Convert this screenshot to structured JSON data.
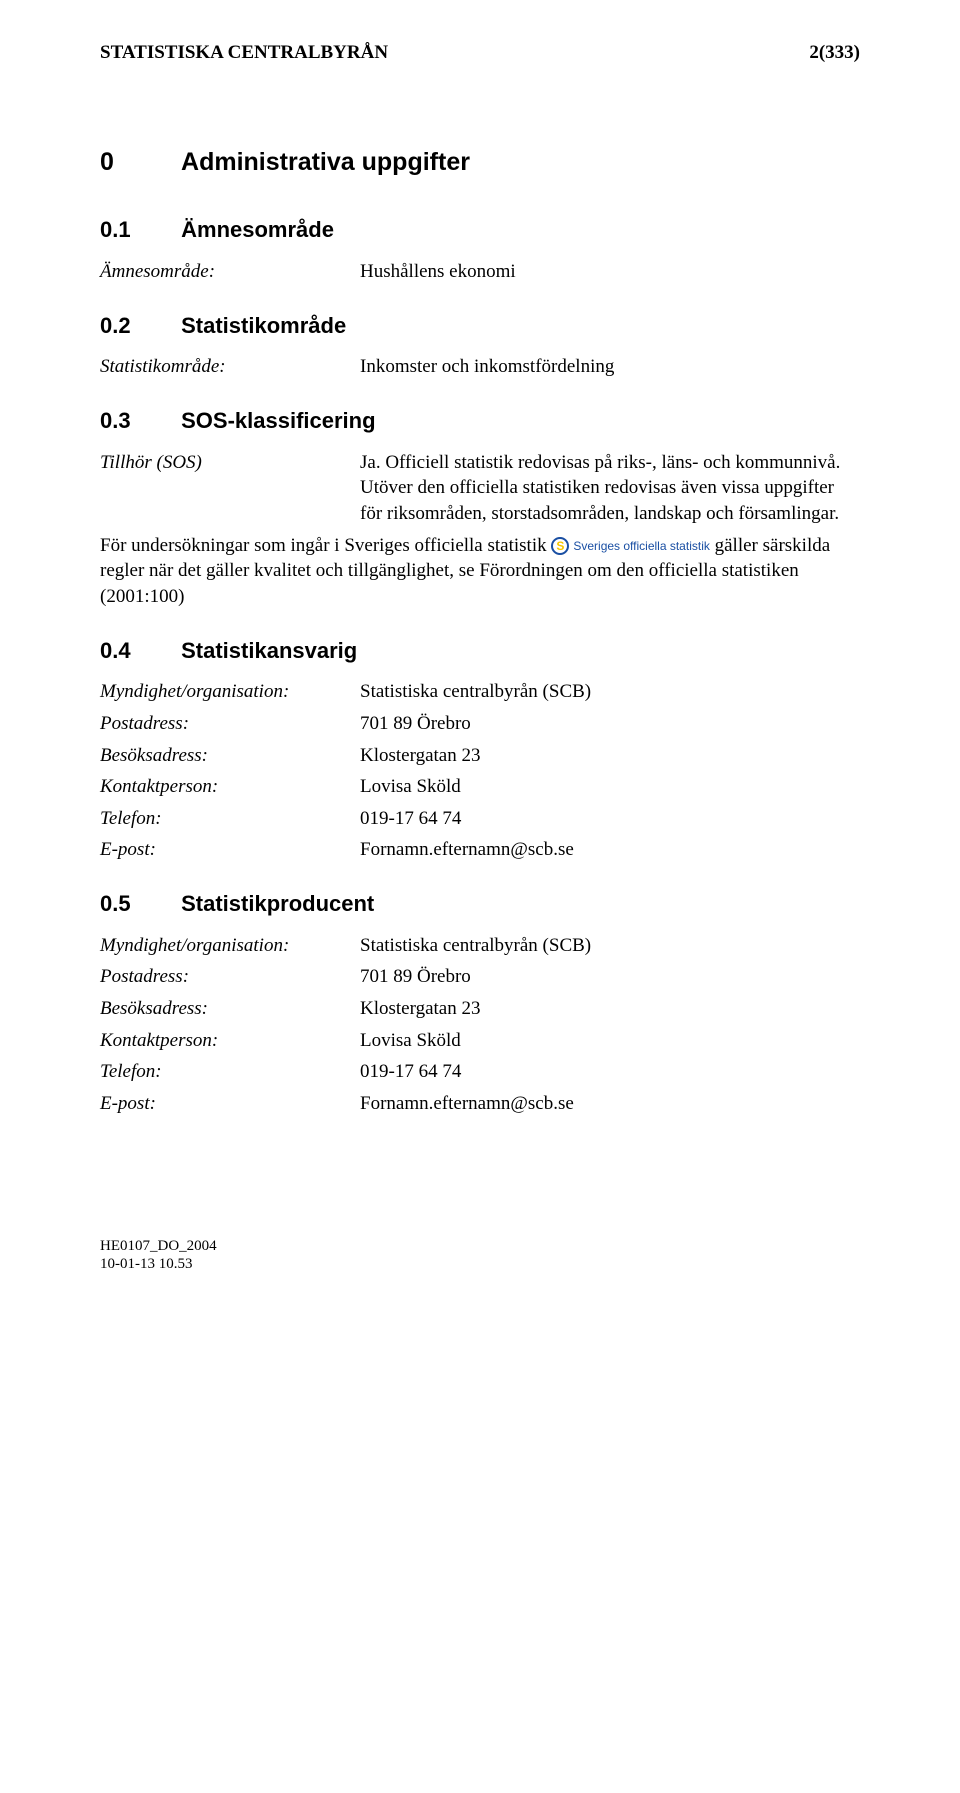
{
  "header": {
    "org": "STATISTISKA CENTRALBYRÅN",
    "page": "2(333)"
  },
  "s0": {
    "num": "0",
    "title": "Administrativa uppgifter"
  },
  "s01": {
    "num": "0.1",
    "title": "Ämnesområde",
    "label": "Ämnesområde:",
    "value": "Hushållens ekonomi"
  },
  "s02": {
    "num": "0.2",
    "title": "Statistikområde",
    "label": "Statistikområde:",
    "value": "Inkomster och inkomstfördelning"
  },
  "s03": {
    "num": "0.3",
    "title": "SOS-klassificering",
    "sos_label": "Tillhör (SOS)",
    "sos_value": "Ja. Officiell statistik redovisas på riks-, läns- och kommunnivå. Utöver den officiella statistiken redovisas även vissa uppgifter för riksområden, storstadsområden, landskap och församlingar.",
    "para_before": "För undersökningar som ingår i Sveriges officiella statistik",
    "para_after": "gäller särskilda regler när det gäller kvalitet och tillgänglighet, se Förordningen om den officiella statistiken (2001:100)",
    "logo": {
      "text": "Sveriges officiella statistik",
      "circle_border": "#1a4fa3",
      "circle_bg": "#ffffff",
      "circle_size": 18,
      "border_width": 2,
      "s_color": "#f7c600",
      "s_fontsize": 12,
      "s_glyph": "S"
    }
  },
  "s04": {
    "num": "0.4",
    "title": "Statistikansvarig",
    "rows": [
      {
        "label": "Myndighet/organisation:",
        "value": "Statistiska centralbyrån (SCB)"
      },
      {
        "label": "Postadress:",
        "value": "701 89 Örebro"
      },
      {
        "label": "Besöksadress:",
        "value": "Klostergatan 23"
      },
      {
        "label": "Kontaktperson:",
        "value": "Lovisa Sköld"
      },
      {
        "label": "Telefon:",
        "value": "019-17 64 74"
      },
      {
        "label": "E-post:",
        "value": "Fornamn.efternamn@scb.se"
      }
    ]
  },
  "s05": {
    "num": "0.5",
    "title": "Statistikproducent",
    "rows": [
      {
        "label": "Myndighet/organisation:",
        "value": "Statistiska centralbyrån (SCB)"
      },
      {
        "label": "Postadress:",
        "value": "701 89 Örebro"
      },
      {
        "label": "Besöksadress:",
        "value": "Klostergatan 23"
      },
      {
        "label": "Kontaktperson:",
        "value": "Lovisa Sköld"
      },
      {
        "label": "Telefon:",
        "value": "019-17 64 74"
      },
      {
        "label": "E-post:",
        "value": "Fornamn.efternamn@scb.se"
      }
    ]
  },
  "footer": {
    "line1": "HE0107_DO_2004",
    "line2": "10-01-13 10.53"
  }
}
